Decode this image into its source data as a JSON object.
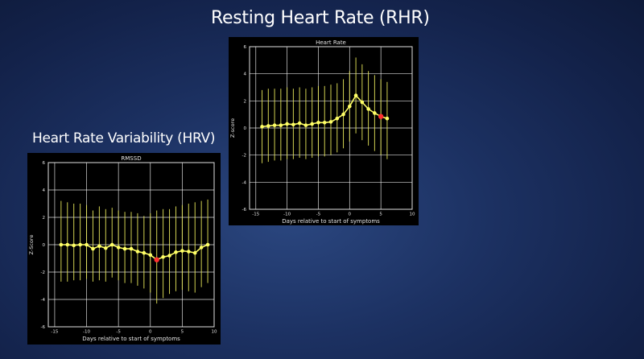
{
  "slide": {
    "rhr_heading": "Resting Heart Rate (RHR)",
    "hrv_heading": "Heart Rate Variability (HRV)"
  },
  "colors": {
    "slide_background": "#1c3162",
    "panel_background": "#000000",
    "grid_color": "#ffffff",
    "axis_frame": "#e0e0e0",
    "line_color": "#ffff66",
    "point_color": "#ffff66",
    "error_bar_color": "#e8e85a",
    "highlight_point": "#ff3030"
  },
  "chart_data": [
    {
      "id": "rhr",
      "type": "line",
      "title": "Heart Rate",
      "xlabel": "Days relative to start of symptoms",
      "ylabel": "Z-score",
      "xlim": [
        -16,
        10
      ],
      "ylim": [
        -6,
        6
      ],
      "xticks": [
        -15,
        -10,
        -5,
        0,
        5,
        10
      ],
      "yticks": [
        -6,
        -4,
        -2,
        0,
        2,
        4,
        6
      ],
      "grid": true,
      "x": [
        -14,
        -13,
        -12,
        -11,
        -10,
        -9,
        -8,
        -7,
        -6,
        -5,
        -4,
        -3,
        -2,
        -1,
        0,
        1,
        2,
        3,
        4,
        5,
        6
      ],
      "y": [
        0.1,
        0.15,
        0.2,
        0.2,
        0.3,
        0.25,
        0.35,
        0.2,
        0.3,
        0.4,
        0.4,
        0.45,
        0.7,
        1.0,
        1.6,
        2.4,
        1.9,
        1.4,
        1.1,
        0.85,
        0.7
      ],
      "err_low": [
        -2.6,
        -2.5,
        -2.4,
        -2.4,
        -2.3,
        -2.3,
        -2.2,
        -2.3,
        -2.2,
        -2.1,
        -2.1,
        -2.0,
        -1.8,
        -1.5,
        -1.0,
        -0.4,
        -0.9,
        -1.3,
        -1.7,
        -2.0,
        -2.3
      ],
      "err_high": [
        2.8,
        2.9,
        2.9,
        2.9,
        3.0,
        2.9,
        3.0,
        2.9,
        3.0,
        3.1,
        3.1,
        3.2,
        3.3,
        3.6,
        4.2,
        5.2,
        4.7,
        4.2,
        3.9,
        3.6,
        3.4
      ],
      "highlight_x": 5
    },
    {
      "id": "hrv",
      "type": "line",
      "title": "RMSSD",
      "xlabel": "Days relative to start of symptoms",
      "ylabel": "Z-Score",
      "xlim": [
        -16,
        10
      ],
      "ylim": [
        -6,
        6
      ],
      "xticks": [
        -15,
        -10,
        -5,
        0,
        5,
        10
      ],
      "yticks": [
        -6,
        -4,
        -2,
        0,
        2,
        4,
        6
      ],
      "grid": true,
      "x": [
        -14,
        -13,
        -12,
        -11,
        -10,
        -9,
        -8,
        -7,
        -6,
        -5,
        -4,
        -3,
        -2,
        -1,
        0,
        1,
        2,
        3,
        4,
        5,
        6,
        7,
        8,
        9
      ],
      "y": [
        0.0,
        0.0,
        -0.05,
        0.0,
        0.0,
        -0.3,
        -0.1,
        -0.25,
        0.0,
        -0.2,
        -0.3,
        -0.3,
        -0.5,
        -0.6,
        -0.75,
        -1.1,
        -0.9,
        -0.8,
        -0.55,
        -0.45,
        -0.5,
        -0.6,
        -0.2,
        0.0
      ],
      "err_low": [
        -2.7,
        -2.7,
        -2.6,
        -2.6,
        -2.5,
        -2.7,
        -2.6,
        -2.7,
        -2.4,
        -2.6,
        -2.8,
        -2.8,
        -3.0,
        -3.2,
        -3.5,
        -4.3,
        -3.9,
        -3.6,
        -3.4,
        -3.3,
        -3.4,
        -3.5,
        -3.1,
        -2.8
      ],
      "err_high": [
        3.2,
        3.1,
        3.0,
        3.0,
        2.9,
        2.5,
        2.8,
        2.6,
        2.7,
        2.5,
        2.4,
        2.4,
        2.3,
        2.1,
        2.3,
        2.5,
        2.6,
        2.6,
        2.8,
        2.9,
        3.0,
        3.1,
        3.2,
        3.3
      ],
      "highlight_x": 1
    }
  ]
}
